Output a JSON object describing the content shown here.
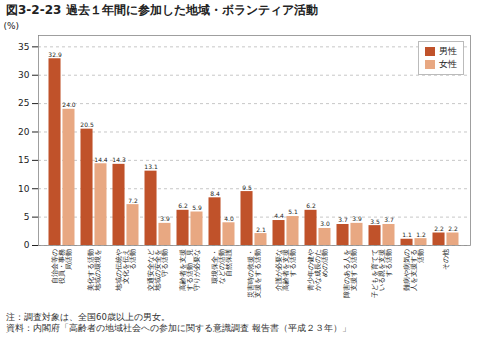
{
  "chart_data": {
    "type": "bar",
    "title": "図3-2-23 過去１年間に参加した地域・ボランティア活動",
    "ylabel": "(%)",
    "categories": [
      "自治会等の\n役員・事務\n局活動",
      "美化する活動\n地域の環境を",
      "地域の伝統や\n文化を伝え\nる活動",
      "交通安全など\n地域の安全を\n守る活動",
      "高齢者を支援\nする活動　見\n守りが必要な",
      "環境保全・\nなどの活動\n自然保護",
      "災害時の救援・\n支援をする活動",
      "介護が必要な\n高齢者を支援\nする活動",
      "青少年の健や\nかな成長のた\nめの活動",
      "障害のある人を\n支援する活動",
      "子どもを育てて\nいる親を支援\nする活動",
      "難病や病気の\n人を支援する\n活動",
      "その他"
    ],
    "series": [
      {
        "name": "男性",
        "color": "#C0522A",
        "values": [
          32.9,
          20.5,
          14.3,
          13.1,
          6.2,
          8.4,
          9.5,
          4.4,
          6.2,
          3.7,
          3.5,
          1.1,
          2.2
        ],
        "value_labels": [
          "32.9",
          "20.5",
          "14.3",
          "13.1",
          "6.2",
          "8.4",
          "9.5",
          "4.4",
          "6.2",
          "3.7",
          "3.5",
          "1.1",
          "2.2"
        ]
      },
      {
        "name": "女性",
        "color": "#E8A882",
        "values": [
          24.0,
          14.4,
          7.2,
          3.9,
          5.9,
          4.0,
          2.1,
          5.1,
          3.0,
          3.9,
          3.7,
          1.2,
          2.2
        ],
        "value_labels": [
          "24.0",
          "14.4",
          "7.2",
          "3.9",
          "5.9",
          "4.0",
          "2.1",
          "5.1",
          "3.0",
          "3.9",
          "3.7",
          "1.2",
          "2.2"
        ]
      }
    ],
    "ylim": [
      0,
      37
    ],
    "yticks": [
      0,
      5,
      10,
      15,
      20,
      25,
      30,
      35
    ],
    "grid": true,
    "legend": "upper right",
    "data_labels": true,
    "annotations": [
      "注：調査対象は、全国60歳以上の男女。",
      "資料：内閣府「高齢者の地域社会への参加に関する意識調査 報告書（平成２３年）」"
    ]
  }
}
